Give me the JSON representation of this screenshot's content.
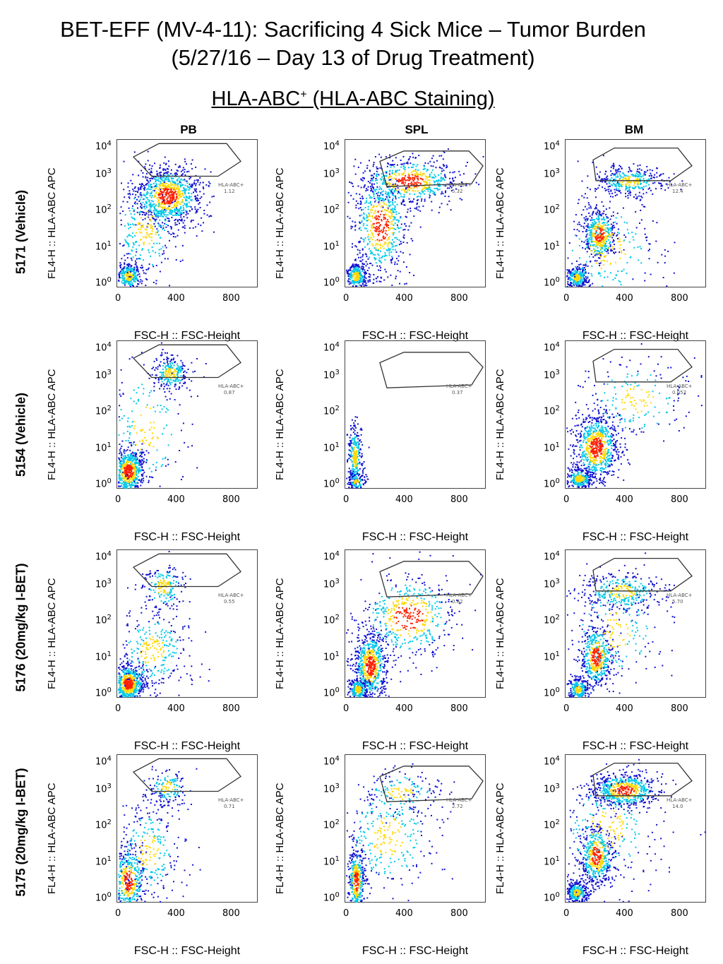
{
  "title_line1": "BET-EFF (MV-4-11): Sacrificing 4 Sick Mice – Tumor Burden",
  "title_line2": "(5/27/16 – Day 13 of Drug Treatment)",
  "subtitle_main": "HLA-ABC",
  "subtitle_sup": "+",
  "subtitle_rest": " (HLA-ABC Staining)",
  "columns": [
    "PB",
    "SPL",
    "BM"
  ],
  "rows": [
    "5171 (Vehicle)",
    "5154 (Vehicle)",
    "5176 (20mg/kg I-BET)",
    "5175 (20mg/kg I-BET)"
  ],
  "chart_data": {
    "type": "scatter",
    "xlabel": "FSC-H :: FSC-Height",
    "ylabel": "FL4-H :: HLA-ABC APC",
    "xticks": [
      "0",
      "400",
      "800"
    ],
    "yticks": [
      "10^0",
      "10^1",
      "10^2",
      "10^3",
      "10^4"
    ],
    "xlim": [
      0,
      1024
    ],
    "ylim_log10": [
      0,
      4.2
    ],
    "gate_name": "HLA-ABC+",
    "colors": {
      "low": "#1010d0",
      "mid": "#00c8e8",
      "high": "#ffd800",
      "peak": "#ff2000",
      "gate": "#333333"
    },
    "panels": [
      {
        "row": "5171 (Vehicle)",
        "col": "PB",
        "gate_value": "1.12"
      },
      {
        "row": "5171 (Vehicle)",
        "col": "SPL",
        "gate_value": "5.32"
      },
      {
        "row": "5171 (Vehicle)",
        "col": "BM",
        "gate_value": "12.4"
      },
      {
        "row": "5154 (Vehicle)",
        "col": "PB",
        "gate_value": "0.87"
      },
      {
        "row": "5154 (Vehicle)",
        "col": "SPL",
        "gate_value": "0.37"
      },
      {
        "row": "5154 (Vehicle)",
        "col": "BM",
        "gate_value": "0.052"
      },
      {
        "row": "5176 (20mg/kg I-BET)",
        "col": "PB",
        "gate_value": "0.55"
      },
      {
        "row": "5176 (20mg/kg I-BET)",
        "col": "SPL",
        "gate_value": "0.62"
      },
      {
        "row": "5176 (20mg/kg I-BET)",
        "col": "BM",
        "gate_value": "5.70"
      },
      {
        "row": "5175 (20mg/kg I-BET)",
        "col": "PB",
        "gate_value": "0.71"
      },
      {
        "row": "5175 (20mg/kg I-BET)",
        "col": "SPL",
        "gate_value": "2.72"
      },
      {
        "row": "5175 (20mg/kg I-BET)",
        "col": "BM",
        "gate_value": "14.0"
      }
    ]
  }
}
